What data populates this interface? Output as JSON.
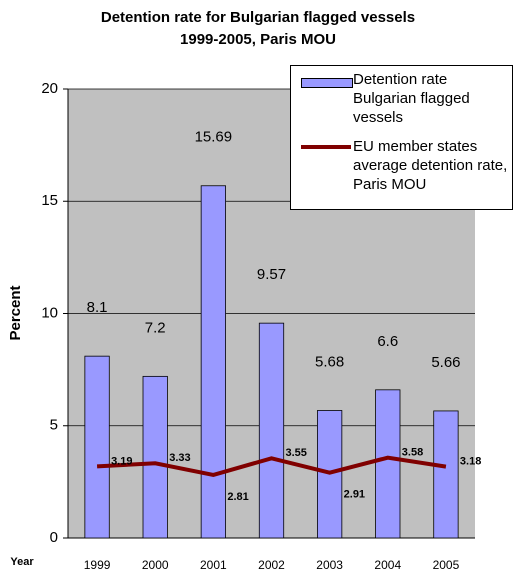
{
  "chart_data": {
    "type": "bar",
    "title": [
      "Detention rate for Bulgarian flagged vessels",
      "1999-2005, Paris MOU"
    ],
    "x_label": "Year",
    "y_label": "Percent",
    "categories": [
      "1999",
      "2000",
      "2001",
      "2002",
      "2003",
      "2004",
      "2005"
    ],
    "series": [
      {
        "name": "Detention rate Bulgarian flagged vessels",
        "type": "bar",
        "color": "#9999ff",
        "values": [
          8.1,
          7.2,
          15.69,
          9.57,
          5.68,
          6.6,
          5.66
        ]
      },
      {
        "name": "EU member states average detention rate, Paris MOU",
        "type": "line",
        "color": "#800000",
        "values": [
          3.19,
          3.33,
          2.81,
          3.55,
          2.91,
          3.58,
          3.18
        ]
      }
    ],
    "ylim": [
      0,
      20
    ],
    "yticks": [
      0,
      5,
      10,
      15,
      20
    ],
    "grid": true,
    "legend": "top-right"
  }
}
